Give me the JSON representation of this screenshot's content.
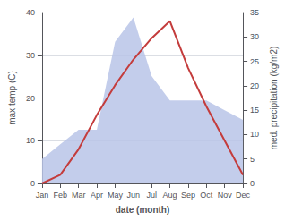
{
  "chart_data": {
    "type": "line",
    "xlabel": "date (month)",
    "ylabel": "max temp (C)",
    "y2label": "med. precipitation (kg/m2)",
    "categories": [
      "Jan",
      "Feb",
      "Mar",
      "Apr",
      "May",
      "Jun",
      "Jul",
      "Aug",
      "Sep",
      "Oct",
      "Nov",
      "Dec"
    ],
    "series": [
      {
        "type": "area",
        "color": "#b8c4e8",
        "axis": "y2",
        "values": [
          5,
          8,
          11,
          11,
          29,
          34,
          22,
          17,
          17,
          17,
          15,
          13
        ]
      },
      {
        "type": "line",
        "color": "#c43c3c",
        "values": [
          0,
          2,
          8,
          16,
          23,
          29,
          34,
          38,
          27,
          18,
          10,
          2
        ]
      }
    ],
    "ylim": [
      0,
      40
    ],
    "yticks": [
      0,
      10,
      20,
      30,
      40
    ],
    "y2lim": [
      0,
      35
    ],
    "y2ticks": [
      0,
      5,
      10,
      15,
      20,
      25,
      30,
      35
    ],
    "grid": true
  }
}
